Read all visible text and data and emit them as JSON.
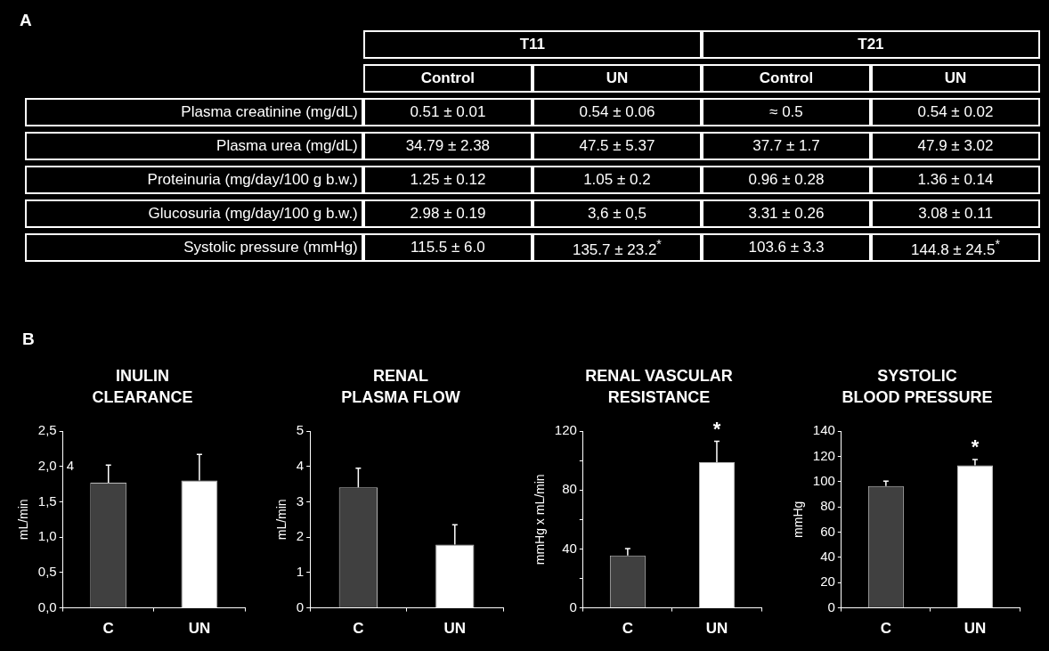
{
  "chart_data": [
    {
      "type": "other",
      "title": "A",
      "annotations": [
        "T11",
        "T21"
      ],
      "categories": [
        "Control",
        "UN",
        "Control",
        "UN"
      ],
      "y_categories": [
        "Plasma creatinine (mg/dL)",
        "Plasma urea (mg/dL)",
        "Proteinuria (mg/day/100 g b.w.)",
        "Glucosuria (mg/day/100 g b.w.)",
        "Systolic pressure (mmHg)"
      ],
      "cell_labels": [
        [
          "0.51 ± 0.01",
          "0.54 ± 0.06",
          "≈ 0.5",
          "0.54 ± 0.02"
        ],
        [
          "34.79 ± 2.38",
          "47.5 ± 5.37",
          "37.7 ± 1.7",
          "47.9 ± 3.02"
        ],
        [
          "1.25 ± 0.12",
          "1.05 ± 0.2",
          "0.96 ± 0.28",
          "1.36 ± 0.14"
        ],
        [
          "2.98 ± 0.19",
          "3,6 ± 0,5",
          "3.31 ± 0.26",
          "3.08 ± 0.11"
        ],
        [
          "115.5 ± 6.0",
          "135.7 ± 23.2$^{*}$",
          "103.6 ± 3.3",
          "144.8 ± 24.5$^{*}$"
        ]
      ]
    },
    {
      "type": "bar",
      "subtitle": "B",
      "title": "INULIN\nCLEARANCE",
      "ylabel": "mL/min",
      "categories": [
        "C",
        "UN"
      ],
      "values": [
        1.77,
        1.8
      ],
      "errors": [
        0.25,
        0.37
      ],
      "colors": [
        "#404040",
        "#ffffff"
      ],
      "ylim": [
        0,
        2.5
      ],
      "yticks": [
        {
          "value": 0,
          "label": "0,0"
        },
        {
          "value": 0.5,
          "label": "0,5"
        },
        {
          "value": 1,
          "label": "1,0"
        },
        {
          "value": 1.5,
          "label": "1,5"
        },
        {
          "value": 2,
          "label": "2,0"
        },
        {
          "value": 2.5,
          "label": "2,5"
        }
      ],
      "annotations": [
        "4"
      ]
    },
    {
      "type": "bar",
      "title": "RENAL\nPLASMA FLOW",
      "ylabel": "mL/min",
      "categories": [
        "C",
        "UN"
      ],
      "values": [
        3.41,
        1.79
      ],
      "errors": [
        0.54,
        0.56
      ],
      "colors": [
        "#404040",
        "#ffffff"
      ],
      "ylim": [
        0,
        5
      ],
      "yticks": [
        0,
        1,
        2,
        3,
        4,
        5
      ]
    },
    {
      "type": "bar",
      "title": "RENAL VASCULAR\nRESISTANCE",
      "ylabel": "mmHg x mL/min",
      "categories": [
        "C",
        "UN"
      ],
      "values": [
        35.5,
        98.8
      ],
      "errors": [
        4.7,
        14.2
      ],
      "colors": [
        "#404040",
        "#ffffff"
      ],
      "ylim": [
        0,
        120
      ],
      "yticks": [
        0,
        {
          "value": 20,
          "label": null
        },
        40,
        {
          "value": 60,
          "label": null
        },
        80,
        {
          "value": 100,
          "label": null
        },
        120
      ],
      "annotations": [
        "*"
      ]
    },
    {
      "type": "bar",
      "title": "SYSTOLIC\nBLOOD PRESSURE",
      "ylabel": "mmHg",
      "categories": [
        "C",
        "UN"
      ],
      "values": [
        96.5,
        112.8
      ],
      "errors": [
        3.8,
        4.6
      ],
      "colors": [
        "#404040",
        "#ffffff"
      ],
      "ylim": [
        0,
        140
      ],
      "yticks": [
        0,
        20,
        40,
        60,
        80,
        100,
        120,
        140
      ],
      "annotations": [
        "*"
      ]
    }
  ]
}
